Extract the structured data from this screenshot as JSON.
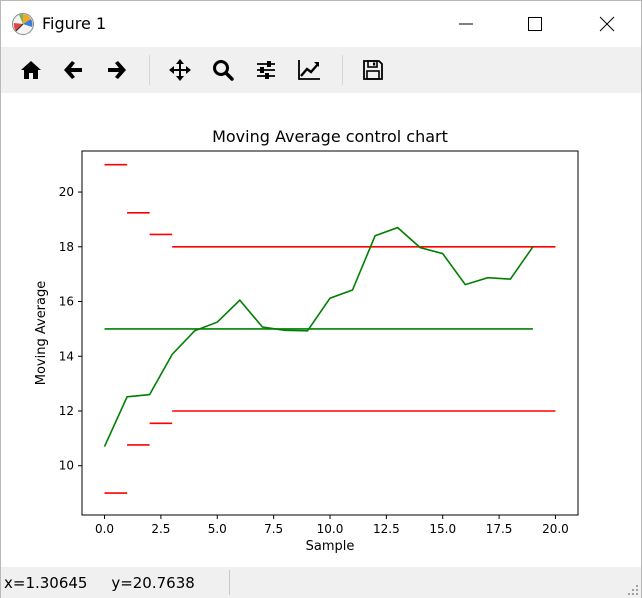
{
  "window": {
    "title": "Figure 1",
    "icon": "matplotlib-icon"
  },
  "toolbar": {
    "tools": [
      {
        "name": "home-icon"
      },
      {
        "name": "back-arrow-icon"
      },
      {
        "name": "forward-arrow-icon"
      },
      {
        "name": "pan-move-icon"
      },
      {
        "name": "zoom-magnifier-icon"
      },
      {
        "name": "configure-subplots-icon"
      },
      {
        "name": "edit-axis-icon"
      },
      {
        "name": "save-floppy-icon"
      }
    ]
  },
  "status": {
    "coords": "x=1.30645     y=20.7638"
  },
  "chart_data": {
    "type": "line",
    "title": "Moving Average control chart",
    "xlabel": "Sample",
    "ylabel": "Moving Average",
    "xlim": [
      -1,
      21
    ],
    "ylim": [
      8.2,
      21.5
    ],
    "xticks": [
      0.0,
      2.5,
      5.0,
      7.5,
      10.0,
      12.5,
      15.0,
      17.5,
      20.0
    ],
    "xtick_labels": [
      "0.0",
      "2.5",
      "5.0",
      "7.5",
      "10.0",
      "12.5",
      "15.0",
      "17.5",
      "20.0"
    ],
    "yticks": [
      10,
      12,
      14,
      16,
      18,
      20
    ],
    "ytick_labels": [
      "10",
      "12",
      "14",
      "16",
      "18",
      "20"
    ],
    "grid": false,
    "series": [
      {
        "color": "#008000",
        "x": [
          0,
          1,
          2,
          3,
          4,
          5,
          6,
          7,
          8,
          9,
          10,
          11,
          12,
          13,
          14,
          15,
          16,
          17,
          18,
          19
        ],
        "values": [
          10.7,
          12.52,
          12.6,
          14.07,
          14.93,
          15.25,
          16.05,
          15.07,
          14.95,
          14.93,
          16.12,
          16.42,
          18.4,
          18.7,
          17.97,
          17.75,
          16.62,
          16.87,
          16.82,
          18.0
        ]
      }
    ],
    "center_line": {
      "color": "#008000",
      "y": 15.0,
      "x": [
        0,
        19
      ]
    },
    "control_limits": {
      "color": "#ff0000",
      "upper": [
        {
          "x": [
            0,
            1
          ],
          "y": 21.0
        },
        {
          "x": [
            1,
            2
          ],
          "y": 19.24
        },
        {
          "x": [
            2,
            3
          ],
          "y": 18.45
        },
        {
          "x": [
            3,
            20
          ],
          "y": 18.0
        }
      ],
      "lower": [
        {
          "x": [
            0,
            1
          ],
          "y": 9.0
        },
        {
          "x": [
            1,
            2
          ],
          "y": 10.76
        },
        {
          "x": [
            2,
            3
          ],
          "y": 11.55
        },
        {
          "x": [
            3,
            20
          ],
          "y": 12.0
        }
      ]
    }
  }
}
